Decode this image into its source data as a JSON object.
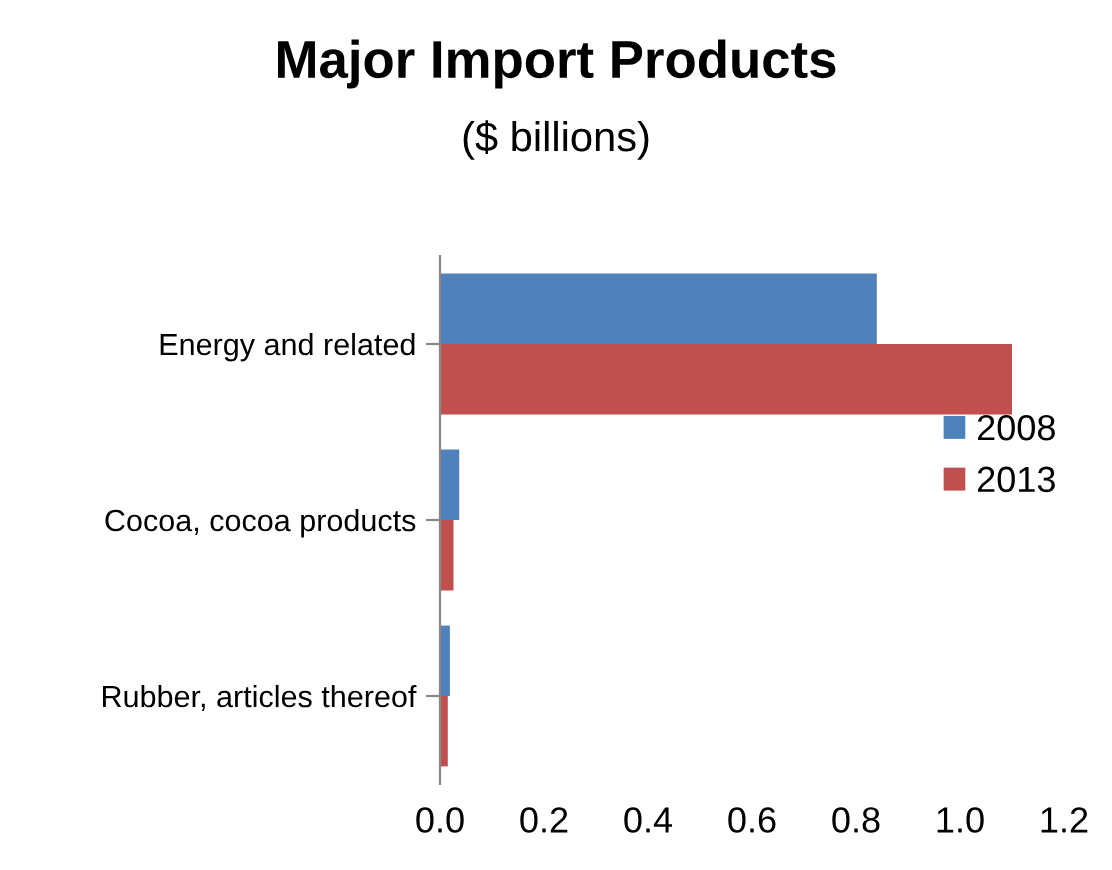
{
  "chart_data": {
    "type": "bar",
    "orientation": "horizontal",
    "title": "Major Import Products",
    "subtitle": "($ billions)",
    "categories": [
      "Energy and related",
      "Cocoa, cocoa products",
      "Rubber, articles thereof"
    ],
    "series": [
      {
        "name": "2008",
        "color": "#4f81bd",
        "values": [
          0.84,
          0.037,
          0.019
        ]
      },
      {
        "name": "2013",
        "color": "#c0504d",
        "values": [
          1.1,
          0.026,
          0.015
        ]
      }
    ],
    "xlim": [
      0,
      1.2
    ],
    "xticks": [
      {
        "value": 0,
        "label": "0.0"
      },
      0.2,
      0.4,
      0.6,
      0.8,
      {
        "value": 1,
        "label": "1.0"
      },
      1.2
    ],
    "grid": false,
    "legend": "right"
  }
}
